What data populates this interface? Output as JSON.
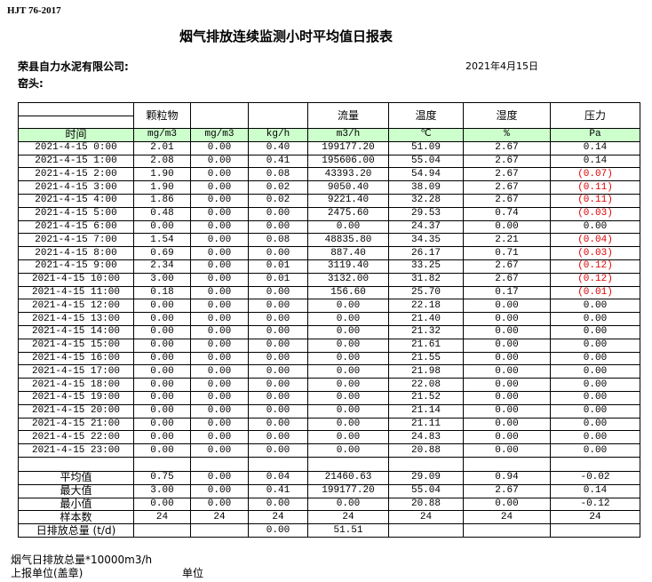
{
  "header": {
    "standard": "HJT  76-2017",
    "title": "烟气排放连续监测小时平均值日报表",
    "company": "荣县自力水泥有限公司:",
    "kiln": "窑头:",
    "date": "2021年4月15日"
  },
  "table": {
    "head": [
      "",
      "颗粒物",
      "",
      "",
      "流量",
      "温度",
      "湿度",
      "压力"
    ],
    "units": [
      "时间",
      "mg/m3",
      "mg/m3",
      "kg/h",
      "m3/h",
      "℃",
      "%",
      "Pa"
    ],
    "unit_row_color": "#ccffcc",
    "negative_color": "#e00000",
    "rows": [
      [
        "2021-4-15 0:00",
        "2.01",
        "0.00",
        "0.40",
        "199177.20",
        "51.09",
        "2.67",
        "0.14"
      ],
      [
        "2021-4-15 1:00",
        "2.08",
        "0.00",
        "0.41",
        "195606.00",
        "55.04",
        "2.67",
        "0.14"
      ],
      [
        "2021-4-15 2:00",
        "1.90",
        "0.00",
        "0.08",
        "43393.20",
        "54.94",
        "2.67",
        "(0.07)"
      ],
      [
        "2021-4-15 3:00",
        "1.90",
        "0.00",
        "0.02",
        "9050.40",
        "38.09",
        "2.67",
        "(0.11)"
      ],
      [
        "2021-4-15 4:00",
        "1.86",
        "0.00",
        "0.02",
        "9221.40",
        "32.28",
        "2.67",
        "(0.11)"
      ],
      [
        "2021-4-15 5:00",
        "0.48",
        "0.00",
        "0.00",
        "2475.60",
        "29.53",
        "0.74",
        "(0.03)"
      ],
      [
        "2021-4-15 6:00",
        "0.00",
        "0.00",
        "0.00",
        "0.00",
        "24.37",
        "0.00",
        "0.00"
      ],
      [
        "2021-4-15 7:00",
        "1.54",
        "0.00",
        "0.08",
        "48835.80",
        "34.35",
        "2.21",
        "(0.04)"
      ],
      [
        "2021-4-15 8:00",
        "0.69",
        "0.00",
        "0.00",
        "887.40",
        "26.17",
        "0.71",
        "(0.03)"
      ],
      [
        "2021-4-15 9:00",
        "2.34",
        "0.00",
        "0.01",
        "3119.40",
        "33.25",
        "2.67",
        "(0.12)"
      ],
      [
        "2021-4-15 10:00",
        "3.00",
        "0.00",
        "0.01",
        "3132.00",
        "31.82",
        "2.67",
        "(0.12)"
      ],
      [
        "2021-4-15 11:00",
        "0.18",
        "0.00",
        "0.00",
        "156.60",
        "25.70",
        "0.17",
        "(0.01)"
      ],
      [
        "2021-4-15 12:00",
        "0.00",
        "0.00",
        "0.00",
        "0.00",
        "22.18",
        "0.00",
        "0.00"
      ],
      [
        "2021-4-15 13:00",
        "0.00",
        "0.00",
        "0.00",
        "0.00",
        "21.40",
        "0.00",
        "0.00"
      ],
      [
        "2021-4-15 14:00",
        "0.00",
        "0.00",
        "0.00",
        "0.00",
        "21.32",
        "0.00",
        "0.00"
      ],
      [
        "2021-4-15 15:00",
        "0.00",
        "0.00",
        "0.00",
        "0.00",
        "21.61",
        "0.00",
        "0.00"
      ],
      [
        "2021-4-15 16:00",
        "0.00",
        "0.00",
        "0.00",
        "0.00",
        "21.55",
        "0.00",
        "0.00"
      ],
      [
        "2021-4-15 17:00",
        "0.00",
        "0.00",
        "0.00",
        "0.00",
        "21.98",
        "0.00",
        "0.00"
      ],
      [
        "2021-4-15 18:00",
        "0.00",
        "0.00",
        "0.00",
        "0.00",
        "22.08",
        "0.00",
        "0.00"
      ],
      [
        "2021-4-15 19:00",
        "0.00",
        "0.00",
        "0.00",
        "0.00",
        "21.52",
        "0.00",
        "0.00"
      ],
      [
        "2021-4-15 20:00",
        "0.00",
        "0.00",
        "0.00",
        "0.00",
        "21.14",
        "0.00",
        "0.00"
      ],
      [
        "2021-4-15 21:00",
        "0.00",
        "0.00",
        "0.00",
        "0.00",
        "21.11",
        "0.00",
        "0.00"
      ],
      [
        "2021-4-15 22:00",
        "0.00",
        "0.00",
        "0.00",
        "0.00",
        "24.83",
        "0.00",
        "0.00"
      ],
      [
        "2021-4-15 23:00",
        "0.00",
        "0.00",
        "0.00",
        "0.00",
        "20.88",
        "0.00",
        "0.00"
      ]
    ],
    "summary": [
      [
        "平均值",
        "0.75",
        "0.00",
        "0.04",
        "21460.63",
        "29.09",
        "0.94",
        "-0.02"
      ],
      [
        "最大值",
        "3.00",
        "0.00",
        "0.41",
        "199177.20",
        "55.04",
        "2.67",
        "0.14"
      ],
      [
        "最小值",
        "0.00",
        "0.00",
        "0.00",
        "0.00",
        "20.88",
        "0.00",
        "-0.12"
      ],
      [
        "样本数",
        "24",
        "24",
        "24",
        "24",
        "24",
        "24",
        "24"
      ],
      [
        "日排放总量 (t/d)",
        "",
        "",
        "0.00",
        "51.51",
        "",
        "",
        ""
      ]
    ]
  },
  "footer": {
    "note": "烟气日排放总量*10000m3/h",
    "reporter": "上报单位(盖章)",
    "unit": "单位"
  }
}
